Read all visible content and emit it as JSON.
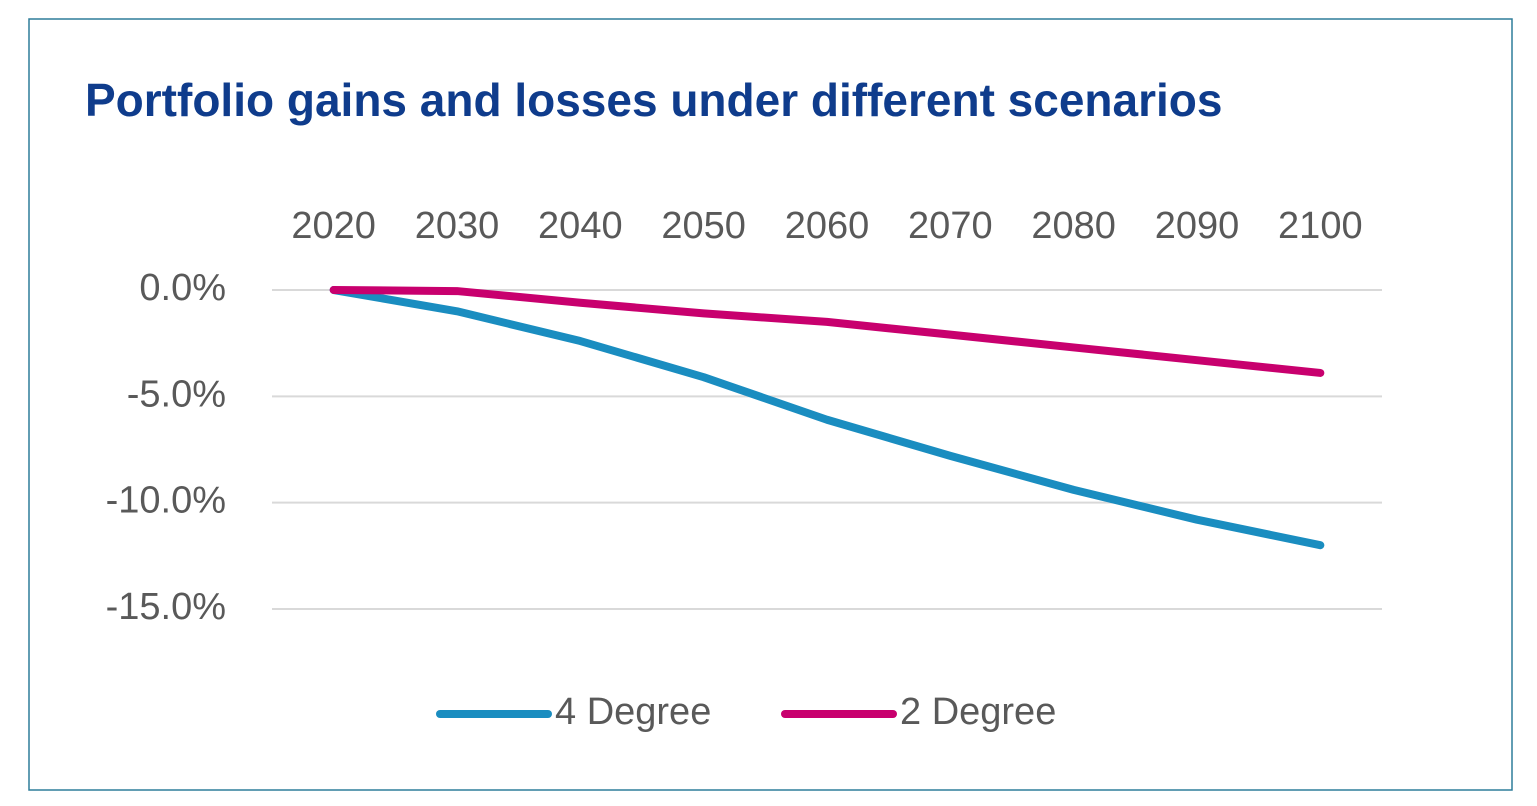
{
  "chart_data": {
    "type": "line",
    "title": "Portfolio gains and losses under different scenarios",
    "categories": [
      "2020",
      "2030",
      "2040",
      "2050",
      "2060",
      "2070",
      "2080",
      "2090",
      "2100"
    ],
    "series": [
      {
        "name": "4 Degree",
        "color": "#1a8dc0",
        "values": [
          0,
          -1.0,
          -2.4,
          -4.1,
          -6.1,
          -7.8,
          -9.4,
          -10.8,
          -12.0
        ]
      },
      {
        "name": "2 Degree",
        "color": "#c8006e",
        "values": [
          0,
          -0.05,
          -0.6,
          -1.1,
          -1.5,
          -2.1,
          -2.7,
          -3.3,
          -3.9
        ]
      }
    ],
    "ylim": [
      -15,
      0
    ],
    "yticks": [
      {
        "value": 0,
        "label": "0.0%"
      },
      {
        "value": -5,
        "label": "-5.0%"
      },
      {
        "value": -10,
        "label": "-10.0%"
      },
      {
        "value": -15,
        "label": "-15.0%"
      }
    ],
    "grid": true,
    "legend": "bottom"
  }
}
